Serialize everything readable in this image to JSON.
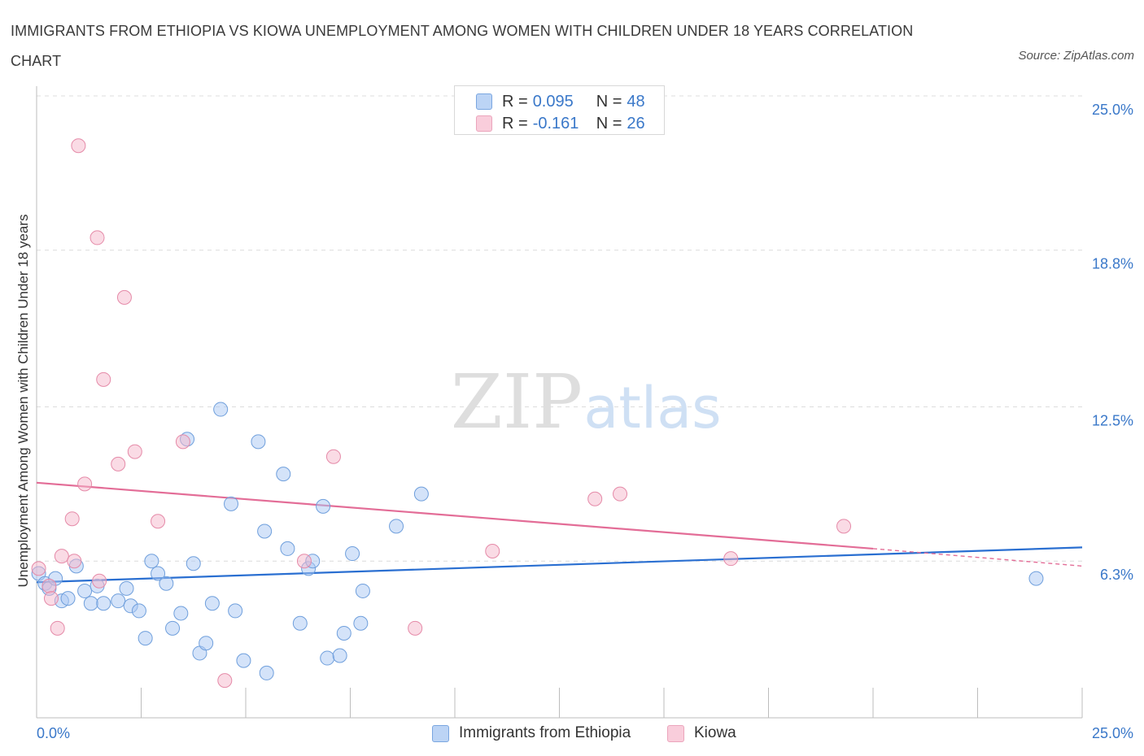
{
  "title": "IMMIGRANTS FROM ETHIOPIA VS KIOWA UNEMPLOYMENT AMONG WOMEN WITH CHILDREN UNDER 18 YEARS CORRELATION CHART",
  "source": "Source: ZipAtlas.com",
  "watermark": {
    "zip": "ZIP",
    "atlas": "atlas"
  },
  "stats": [
    {
      "r_label": "R = ",
      "r_value": "0.095",
      "n_label": "N = ",
      "n_value": "48",
      "color": "#a9c8f3"
    },
    {
      "r_label": "R = ",
      "r_value": "-0.161",
      "n_label": "N = ",
      "n_value": "26",
      "color": "#f5b8cb"
    }
  ],
  "legend": [
    {
      "label": "Immigrants from Ethiopia",
      "color": "#a9c8f3"
    },
    {
      "label": "Kiowa",
      "color": "#f5b8cb"
    }
  ],
  "colors": {
    "blue_fill": "#a9c8f3",
    "blue_stroke": "#6f9fdc",
    "blue_line": "#2a6fd1",
    "pink_fill": "#f5b8cb",
    "pink_stroke": "#e58aa8",
    "pink_line": "#e36d97",
    "tick_label": "#3a78c9",
    "grid": "#dcdcdc"
  },
  "chart_data": {
    "type": "scatter",
    "title": "IMMIGRANTS FROM ETHIOPIA VS KIOWA UNEMPLOYMENT AMONG WOMEN WITH CHILDREN UNDER 18 YEARS CORRELATION CHART",
    "xlabel": "",
    "ylabel": "Unemployment Among Women with Children Under 18 years",
    "xlim": [
      0,
      25
    ],
    "ylim": [
      0,
      25
    ],
    "x_tick_labels": [
      "0.0%",
      "25.0%"
    ],
    "y_ticks": [
      6.3,
      12.5,
      18.8,
      25.0
    ],
    "y_tick_labels": [
      "6.3%",
      "12.5%",
      "18.8%",
      "25.0%"
    ],
    "grid": "horizontal dashed",
    "legend_position": "bottom",
    "series": [
      {
        "name": "Immigrants from Ethiopia",
        "color": "#a9c8f3",
        "points": [
          [
            0.05,
            5.8
          ],
          [
            0.2,
            5.4
          ],
          [
            0.3,
            5.2
          ],
          [
            0.45,
            5.6
          ],
          [
            0.6,
            4.7
          ],
          [
            0.75,
            4.8
          ],
          [
            0.95,
            6.1
          ],
          [
            1.15,
            5.1
          ],
          [
            1.3,
            4.6
          ],
          [
            1.45,
            5.3
          ],
          [
            1.6,
            4.6
          ],
          [
            1.95,
            4.7
          ],
          [
            2.15,
            5.2
          ],
          [
            2.25,
            4.5
          ],
          [
            2.45,
            4.3
          ],
          [
            2.6,
            3.2
          ],
          [
            2.75,
            6.3
          ],
          [
            2.9,
            5.8
          ],
          [
            3.1,
            5.4
          ],
          [
            3.25,
            3.6
          ],
          [
            3.45,
            4.2
          ],
          [
            3.6,
            11.2
          ],
          [
            3.75,
            6.2
          ],
          [
            3.9,
            2.6
          ],
          [
            4.05,
            3.0
          ],
          [
            4.2,
            4.6
          ],
          [
            4.4,
            12.4
          ],
          [
            4.65,
            8.6
          ],
          [
            4.75,
            4.3
          ],
          [
            4.95,
            2.3
          ],
          [
            5.3,
            11.1
          ],
          [
            5.45,
            7.5
          ],
          [
            5.5,
            1.8
          ],
          [
            5.9,
            9.8
          ],
          [
            6.0,
            6.8
          ],
          [
            6.3,
            3.8
          ],
          [
            6.5,
            6.0
          ],
          [
            6.6,
            6.3
          ],
          [
            6.85,
            8.5
          ],
          [
            6.95,
            2.4
          ],
          [
            7.25,
            2.5
          ],
          [
            7.35,
            3.4
          ],
          [
            7.55,
            6.6
          ],
          [
            7.75,
            3.8
          ],
          [
            7.8,
            5.1
          ],
          [
            8.6,
            7.7
          ],
          [
            9.2,
            9.0
          ],
          [
            23.9,
            5.6
          ]
        ],
        "trend": {
          "x": [
            0,
            25
          ],
          "y": [
            5.45,
            6.85
          ]
        }
      },
      {
        "name": "Kiowa",
        "color": "#f5b8cb",
        "points": [
          [
            0.05,
            6.0
          ],
          [
            0.3,
            5.3
          ],
          [
            0.35,
            4.8
          ],
          [
            0.5,
            3.6
          ],
          [
            0.6,
            6.5
          ],
          [
            0.85,
            8.0
          ],
          [
            0.9,
            6.3
          ],
          [
            1.0,
            23.0
          ],
          [
            1.15,
            9.4
          ],
          [
            1.45,
            19.3
          ],
          [
            1.5,
            5.5
          ],
          [
            1.6,
            13.6
          ],
          [
            1.95,
            10.2
          ],
          [
            2.1,
            16.9
          ],
          [
            2.35,
            10.7
          ],
          [
            2.9,
            7.9
          ],
          [
            3.5,
            11.1
          ],
          [
            4.5,
            1.5
          ],
          [
            6.4,
            6.3
          ],
          [
            7.1,
            10.5
          ],
          [
            9.05,
            3.6
          ],
          [
            10.9,
            6.7
          ],
          [
            13.35,
            8.8
          ],
          [
            13.95,
            9.0
          ],
          [
            16.6,
            6.4
          ],
          [
            19.3,
            7.7
          ]
        ],
        "trend": {
          "x": [
            0,
            20
          ],
          "y": [
            9.45,
            6.8
          ]
        },
        "trend_dashed": {
          "x": [
            20,
            25
          ],
          "y": [
            6.8,
            6.1
          ]
        }
      }
    ]
  }
}
